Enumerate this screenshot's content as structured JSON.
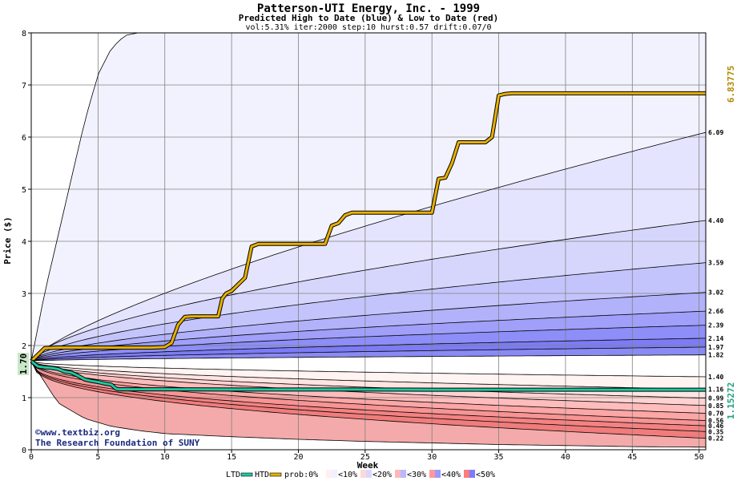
{
  "chart_data": {
    "type": "area",
    "title": "Patterson-UTI Energy, Inc. - 1999",
    "subtitle": "Predicted High to Date (blue) &  Low to Date (red)",
    "params": "vol:5.31% iter:2000 step:10 hurst:0.57 drift:0.07/0",
    "xlabel": "Week",
    "ylabel": "Price ($)",
    "xlim": [
      0,
      50.5
    ],
    "ylim": [
      0,
      8
    ],
    "xticks": [
      0,
      5,
      10,
      15,
      20,
      25,
      30,
      35,
      40,
      45,
      50
    ],
    "yticks": [
      0,
      1,
      2,
      3,
      4,
      5,
      6,
      7,
      8
    ],
    "grid": true,
    "start_price_label": "1.70",
    "start_price": 1.7,
    "max_label": "6.83775",
    "min_label": "1.15272",
    "upper_end_labels": [
      "6.09",
      "4.40",
      "3.59",
      "3.02",
      "2.66",
      "2.39",
      "2.14",
      "1.97",
      "1.82"
    ],
    "upper_end_values": [
      6.09,
      4.4,
      3.59,
      3.02,
      2.66,
      2.39,
      2.14,
      1.97,
      1.82
    ],
    "upper_exponents": [
      0.75,
      0.62,
      0.6,
      0.58,
      0.56,
      0.55,
      0.55,
      0.55,
      0.55
    ],
    "outer_upper_curve": {
      "x": [
        0,
        1,
        2,
        3,
        4,
        5,
        6,
        7,
        8
      ],
      "y": [
        1.7,
        3.0,
        4.1,
        5.2,
        6.3,
        7.2,
        7.7,
        7.95,
        8.0
      ]
    },
    "lower_end_labels": [
      "1.40",
      "1.16",
      "0.99",
      "0.85",
      "0.70",
      "0.56",
      "0.46",
      "0.35",
      "0.22"
    ],
    "lower_end_values": [
      1.4,
      1.16,
      0.99,
      0.85,
      0.7,
      0.56,
      0.46,
      0.35,
      0.22
    ],
    "lower_exponents": [
      0.5,
      0.5,
      0.5,
      0.5,
      0.45,
      0.45,
      0.4,
      0.4,
      0.4
    ],
    "outer_lower_curve": {
      "x": [
        0,
        2,
        4,
        6,
        8,
        10,
        15,
        20,
        25,
        30,
        35,
        40,
        45,
        50.5
      ],
      "y": [
        1.7,
        0.9,
        0.6,
        0.45,
        0.37,
        0.31,
        0.25,
        0.2,
        0.16,
        0.13,
        0.1,
        0.08,
        0.06,
        0.05
      ]
    },
    "upper_band_colors": [
      "#f2f2ff",
      "#e4e4fe",
      "#d6d6fd",
      "#c4c4fc",
      "#b2b2fb",
      "#a0a0fa",
      "#8e8ef8",
      "#7c7cf6",
      "#8a8af4"
    ],
    "lower_band_colors": [
      "#fff4f2",
      "#ffe4e2",
      "#ffd2d2",
      "#ffbcbc",
      "#fca6a6",
      "#f89494",
      "#f48282",
      "#f07c7c",
      "#f4aaaa"
    ],
    "htd_color": "#e8b000",
    "ltd_color": "#20c8a0",
    "htd_series": {
      "name": "HTD",
      "x": [
        0,
        1,
        2,
        3,
        4,
        5,
        6,
        7,
        8,
        9,
        10,
        10.5,
        11,
        11.5,
        12,
        13,
        14,
        14.3,
        14.6,
        15,
        16,
        16.5,
        17,
        18,
        19,
        20,
        21,
        22,
        22.5,
        23,
        23.5,
        24,
        25,
        26,
        27,
        28,
        29,
        30,
        30.5,
        31,
        31.5,
        32,
        33,
        34,
        34.5,
        35,
        35.5,
        36,
        37,
        38,
        39,
        40,
        41,
        42,
        43,
        44,
        45,
        46,
        47,
        48,
        49,
        50.5
      ],
      "y": [
        1.7,
        1.95,
        1.96,
        1.96,
        1.96,
        1.96,
        1.96,
        1.96,
        1.96,
        1.96,
        1.97,
        2.05,
        2.4,
        2.55,
        2.56,
        2.56,
        2.56,
        2.9,
        3.0,
        3.05,
        3.3,
        3.9,
        3.95,
        3.95,
        3.95,
        3.95,
        3.95,
        3.95,
        4.3,
        4.35,
        4.5,
        4.55,
        4.55,
        4.55,
        4.55,
        4.55,
        4.55,
        4.55,
        5.2,
        5.22,
        5.5,
        5.9,
        5.9,
        5.9,
        6.0,
        6.8,
        6.83,
        6.84,
        6.84,
        6.84,
        6.84,
        6.84,
        6.84,
        6.84,
        6.84,
        6.84,
        6.84,
        6.84,
        6.84,
        6.84,
        6.84,
        6.84
      ]
    },
    "ltd_series": {
      "name": "LTD",
      "x": [
        0,
        0.5,
        1,
        1.5,
        2,
        2.5,
        3,
        3.5,
        4,
        4.5,
        5,
        5.5,
        6,
        6.3,
        6.5,
        7,
        8,
        10,
        15,
        20,
        25,
        30,
        35,
        40,
        45,
        50.5
      ],
      "y": [
        1.7,
        1.6,
        1.58,
        1.57,
        1.55,
        1.5,
        1.48,
        1.42,
        1.35,
        1.32,
        1.3,
        1.27,
        1.25,
        1.18,
        1.16,
        1.16,
        1.16,
        1.16,
        1.155,
        1.155,
        1.155,
        1.153,
        1.153,
        1.153,
        1.153,
        1.153
      ]
    },
    "watermark": [
      "©www.textbiz.org",
      "The Research Foundation of SUNY"
    ],
    "legend": {
      "ltd": "LTD",
      "htd": "HTD",
      "prob_prefix": "prob:0%",
      "items": [
        "<10%",
        "<20%",
        "<30%",
        "<40%",
        "<50%"
      ],
      "item_colors": [
        [
          "#fff0f0",
          "#f0f0ff"
        ],
        [
          "#ffd8d8",
          "#d8d8ff"
        ],
        [
          "#ffb8b8",
          "#b8b8ff"
        ],
        [
          "#ff9a9a",
          "#9a9aff"
        ],
        [
          "#ff7c7c",
          "#7c7cff"
        ]
      ]
    }
  }
}
